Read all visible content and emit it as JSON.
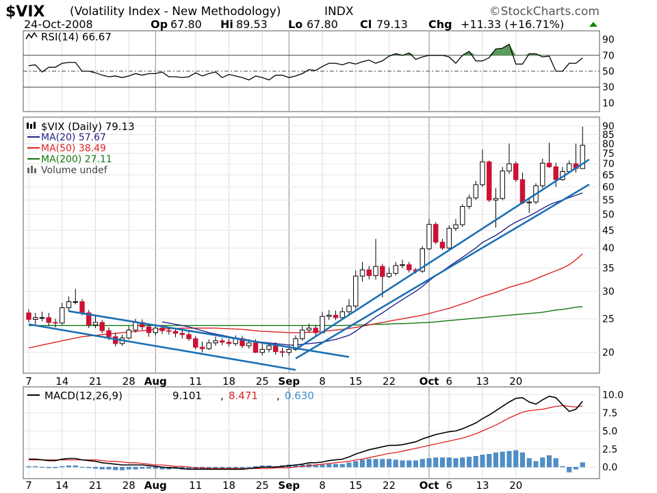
{
  "header": {
    "symbol": "$VIX",
    "description": "(Volatility Index - New Methodology)",
    "exchange": "INDX",
    "brand": "©StockCharts.com",
    "date": "24-Oct-2008",
    "quote": {
      "op_label": "Op",
      "op": "67.80",
      "hi_label": "Hi",
      "hi": "89.53",
      "lo_label": "Lo",
      "lo": "67.80",
      "cl_label": "Cl",
      "cl": "79.13",
      "chg_label": "Chg",
      "chg": "+11.33 (+16.71%)"
    }
  },
  "colors": {
    "up_candle": "#ffffff",
    "down_candle": "#cc1133",
    "ma20": "#222288",
    "ma50": "#dd2222",
    "ma200": "#117711",
    "trendline": "#1a6fb3",
    "macd": "#000000",
    "signal": "#dd2222",
    "histogram": "#4f8fc9",
    "rsi_fill": "#5a9a5a"
  },
  "chart_data": [
    {
      "type": "line",
      "panel": "rsi",
      "legend": "RSI(14) 66.67",
      "y_ticks": [
        90,
        70,
        50,
        30,
        10
      ],
      "ylim": [
        0,
        100
      ],
      "reference_lines": [
        70,
        50,
        30
      ],
      "x": [
        1,
        2,
        3,
        4,
        5,
        6,
        7,
        8,
        9,
        10,
        11,
        12,
        13,
        14,
        15,
        16,
        17,
        18,
        19,
        20,
        21,
        22,
        23,
        24,
        25,
        26,
        27,
        28,
        29,
        30,
        31,
        32,
        33,
        34,
        35,
        36,
        37,
        38,
        39,
        40,
        41,
        42,
        43,
        44,
        45,
        46,
        47,
        48,
        49,
        50,
        51,
        52,
        53,
        54,
        55,
        56,
        57,
        58,
        59,
        60,
        61,
        62,
        63,
        64,
        65,
        66,
        67,
        68,
        69,
        70,
        71,
        72,
        73,
        74,
        75,
        76,
        77,
        78,
        79,
        80,
        81,
        82,
        83,
        84
      ],
      "values": [
        57,
        58,
        49,
        55,
        55,
        60,
        61,
        61,
        50,
        50,
        48,
        45,
        43,
        44,
        42,
        44,
        47,
        45,
        47,
        47,
        49,
        43,
        43,
        42,
        43,
        48,
        44,
        47,
        49,
        42,
        46,
        44,
        42,
        39,
        44,
        42,
        39,
        45,
        45,
        42,
        44,
        47,
        52,
        51,
        56,
        60,
        60,
        58,
        61,
        59,
        62,
        64,
        60,
        63,
        69,
        72,
        70,
        73,
        65,
        68,
        70,
        70,
        70,
        68,
        60,
        70,
        75,
        63,
        63,
        67,
        78,
        79,
        84,
        59,
        59,
        72,
        72,
        68,
        69,
        50,
        50,
        60,
        60,
        66.67
      ]
    },
    {
      "type": "candlestick",
      "panel": "price",
      "title": "$VIX (Daily) 79.13",
      "legend": [
        {
          "name": "$VIX (Daily) 79.13"
        },
        {
          "name": "MA(20) 57.67"
        },
        {
          "name": "MA(50) 38.49"
        },
        {
          "name": "MA(200) 27.11"
        },
        {
          "name": "Volume undef"
        }
      ],
      "scale": "log",
      "y_ticks": [
        90,
        85,
        80,
        75,
        70,
        65,
        60,
        55,
        50,
        45,
        40,
        35,
        30,
        25,
        20
      ],
      "ylim": [
        17.5,
        95
      ],
      "x_ticks": [
        {
          "label": "7",
          "x": 1
        },
        {
          "label": "14",
          "x": 6
        },
        {
          "label": "21",
          "x": 11
        },
        {
          "label": "28",
          "x": 16
        },
        {
          "label": "Aug",
          "x": 20
        },
        {
          "label": "11",
          "x": 26
        },
        {
          "label": "18",
          "x": 31
        },
        {
          "label": "25",
          "x": 36
        },
        {
          "label": "Sep",
          "x": 40
        },
        {
          "label": "8",
          "x": 45
        },
        {
          "label": "15",
          "x": 50
        },
        {
          "label": "22",
          "x": 55
        },
        {
          "label": "Oct",
          "x": 61
        },
        {
          "label": "6",
          "x": 64
        },
        {
          "label": "13",
          "x": 69
        },
        {
          "label": "20",
          "x": 74
        }
      ],
      "candles": {
        "open": [
          26.0,
          24.9,
          25.2,
          25.2,
          24.4,
          24.3,
          26.9,
          28.0,
          28.0,
          26.0,
          24.0,
          24.4,
          23.1,
          22.2,
          21.2,
          22.0,
          23.2,
          24.4,
          23.7,
          22.8,
          23.5,
          23.1,
          23.0,
          22.7,
          22.5,
          21.9,
          20.7,
          20.5,
          21.3,
          21.6,
          21.4,
          21.2,
          21.9,
          20.9,
          21.3,
          20.0,
          20.4,
          20.9,
          20.1,
          20.0,
          20.4,
          21.9,
          23.2,
          23.5,
          22.8,
          25.4,
          25.6,
          25.2,
          26.2,
          27.2,
          33.2,
          34.6,
          33.3,
          35.4,
          33.1,
          33.8,
          35.6,
          35.8,
          34.6,
          34.3,
          39.8,
          46.8,
          41.6,
          40.0,
          45.6,
          46.7,
          52.7,
          55.8,
          60.9,
          70.9,
          55.0,
          55.6,
          66.7,
          70.0,
          63.0,
          54.0,
          54.3,
          60.5,
          70.3,
          68.6,
          63.0,
          66.5,
          70.0,
          67.8
        ],
        "close": [
          24.9,
          25.2,
          25.2,
          24.4,
          24.3,
          26.9,
          28.0,
          28.0,
          26.0,
          24.0,
          24.4,
          23.1,
          22.2,
          21.2,
          22.0,
          23.2,
          24.4,
          23.7,
          22.8,
          23.5,
          23.1,
          23.0,
          22.7,
          22.5,
          21.9,
          20.7,
          20.5,
          21.3,
          21.6,
          21.4,
          21.2,
          21.9,
          20.9,
          21.3,
          20.0,
          20.4,
          20.9,
          20.1,
          20.0,
          20.4,
          21.9,
          23.2,
          23.5,
          22.8,
          25.4,
          25.6,
          25.2,
          26.2,
          27.2,
          33.2,
          34.6,
          33.3,
          35.4,
          33.1,
          33.8,
          35.6,
          35.8,
          34.6,
          34.3,
          39.8,
          46.8,
          41.6,
          40.0,
          45.6,
          46.7,
          52.7,
          55.8,
          60.9,
          70.9,
          55.0,
          55.6,
          66.7,
          70.0,
          63.0,
          54.0,
          54.3,
          60.5,
          70.3,
          68.6,
          63.0,
          66.5,
          70.0,
          67.8,
          79.13
        ],
        "high": [
          26.6,
          26.0,
          26.2,
          26.0,
          25.0,
          27.8,
          29.0,
          30.5,
          28.5,
          26.5,
          25.5,
          24.8,
          23.6,
          22.8,
          22.5,
          23.8,
          25.0,
          24.9,
          24.2,
          24.0,
          24.0,
          23.6,
          23.5,
          23.2,
          23.0,
          22.3,
          21.5,
          21.8,
          22.2,
          22.0,
          21.9,
          22.4,
          22.3,
          21.8,
          21.8,
          21.2,
          21.3,
          21.4,
          20.6,
          20.9,
          22.4,
          23.8,
          24.2,
          24.0,
          26.2,
          26.5,
          26.4,
          27.0,
          28.5,
          34.5,
          36.5,
          35.5,
          42.5,
          36.0,
          35.2,
          36.5,
          37.0,
          36.5,
          35.0,
          40.5,
          48.5,
          47.5,
          42.5,
          46.5,
          48.5,
          53.5,
          57.0,
          62.5,
          77.0,
          71.5,
          59.5,
          68.5,
          80.0,
          71.0,
          66.0,
          56.0,
          61.5,
          72.5,
          80.5,
          70.5,
          68.5,
          71.5,
          80.0,
          89.53
        ],
        "low": [
          24.4,
          23.8,
          24.6,
          23.8,
          23.6,
          24.0,
          26.2,
          27.5,
          25.6,
          23.5,
          23.5,
          22.7,
          21.7,
          20.8,
          20.9,
          21.8,
          22.8,
          23.2,
          22.2,
          22.4,
          22.6,
          22.5,
          22.1,
          21.9,
          21.6,
          20.4,
          20.0,
          20.3,
          20.9,
          21.0,
          20.8,
          20.9,
          20.6,
          20.5,
          19.9,
          19.6,
          20.0,
          19.7,
          19.4,
          19.6,
          20.2,
          21.6,
          22.8,
          22.2,
          22.7,
          24.8,
          24.8,
          24.9,
          25.8,
          26.7,
          32.0,
          32.5,
          32.4,
          28.8,
          32.8,
          33.3,
          35.0,
          34.0,
          33.8,
          33.9,
          39.5,
          41.0,
          39.5,
          39.6,
          44.8,
          46.0,
          51.8,
          55.0,
          60.0,
          54.3,
          45.8,
          54.9,
          65.5,
          62.0,
          53.5,
          50.5,
          53.5,
          59.5,
          68.0,
          60.0,
          62.5,
          65.8,
          66.0,
          67.8
        ]
      },
      "ma20": [
        null,
        null,
        null,
        null,
        null,
        null,
        null,
        null,
        null,
        null,
        null,
        null,
        null,
        null,
        null,
        null,
        null,
        null,
        null,
        null,
        24.5,
        24.3,
        24.1,
        23.9,
        23.7,
        23.4,
        23.1,
        22.8,
        22.6,
        22.4,
        22.2,
        22.0,
        21.9,
        21.7,
        21.5,
        21.4,
        21.3,
        21.2,
        21.1,
        21.0,
        21.0,
        21.1,
        21.2,
        21.3,
        21.4,
        21.6,
        21.8,
        22.1,
        22.4,
        23.0,
        23.8,
        24.5,
        25.3,
        26.0,
        26.8,
        27.6,
        28.4,
        29.2,
        30.0,
        31.0,
        32.2,
        33.3,
        34.3,
        35.4,
        36.5,
        37.6,
        38.8,
        40.0,
        41.5,
        42.5,
        43.5,
        44.8,
        46.3,
        47.5,
        48.5,
        49.5,
        50.7,
        52.0,
        53.3,
        54.2,
        55.0,
        55.9,
        56.8,
        57.67
      ],
      "ma50": [
        20.6,
        20.8,
        21.0,
        21.2,
        21.4,
        21.6,
        21.8,
        22.0,
        22.2,
        22.3,
        22.4,
        22.5,
        22.6,
        22.7,
        22.8,
        22.9,
        23.0,
        23.1,
        23.2,
        23.3,
        23.35,
        23.4,
        23.45,
        23.5,
        23.5,
        23.5,
        23.5,
        23.5,
        23.5,
        23.45,
        23.4,
        23.35,
        23.3,
        23.2,
        23.1,
        23.0,
        22.95,
        22.9,
        22.85,
        22.8,
        22.8,
        22.8,
        22.85,
        22.9,
        23.0,
        23.1,
        23.2,
        23.3,
        23.45,
        23.6,
        23.8,
        24.0,
        24.2,
        24.4,
        24.6,
        24.8,
        25.0,
        25.2,
        25.4,
        25.6,
        25.9,
        26.2,
        26.5,
        26.8,
        27.2,
        27.6,
        28.0,
        28.5,
        29.0,
        29.4,
        29.8,
        30.3,
        30.8,
        31.2,
        31.6,
        32.0,
        32.6,
        33.2,
        33.8,
        34.4,
        35.0,
        35.8,
        37.0,
        38.49
      ],
      "ma200": [
        23.9,
        23.9,
        23.9,
        23.9,
        23.9,
        23.9,
        23.9,
        23.9,
        23.9,
        23.9,
        23.9,
        23.9,
        23.9,
        23.9,
        23.9,
        23.9,
        23.9,
        23.9,
        23.9,
        23.9,
        23.9,
        23.9,
        23.9,
        23.9,
        23.9,
        23.9,
        23.9,
        23.9,
        23.9,
        23.9,
        23.9,
        23.9,
        23.9,
        23.9,
        23.9,
        23.9,
        23.9,
        23.9,
        23.9,
        23.9,
        23.9,
        23.9,
        23.9,
        23.9,
        23.9,
        23.9,
        23.9,
        23.9,
        23.95,
        24.0,
        24.0,
        24.05,
        24.1,
        24.1,
        24.15,
        24.2,
        24.2,
        24.25,
        24.3,
        24.35,
        24.4,
        24.5,
        24.6,
        24.7,
        24.8,
        24.9,
        25.0,
        25.1,
        25.2,
        25.3,
        25.4,
        25.5,
        25.6,
        25.7,
        25.8,
        25.9,
        26.0,
        26.1,
        26.3,
        26.5,
        26.6,
        26.8,
        27.0,
        27.11
      ]
    },
    {
      "type": "line",
      "panel": "macd",
      "legend": [
        "MACD(12,26,9)",
        "9.101",
        ",",
        "8.471",
        ",",
        "0.630"
      ],
      "y_ticks": [
        "10.0",
        "7.5",
        "5.0",
        "2.5",
        "0.0"
      ],
      "ylim": [
        -1.5,
        11
      ],
      "x_ticks": [
        {
          "label": "7",
          "x": 1
        },
        {
          "label": "14",
          "x": 6
        },
        {
          "label": "21",
          "x": 11
        },
        {
          "label": "28",
          "x": 16
        },
        {
          "label": "Aug",
          "x": 20
        },
        {
          "label": "11",
          "x": 26
        },
        {
          "label": "18",
          "x": 31
        },
        {
          "label": "25",
          "x": 36
        },
        {
          "label": "Sep",
          "x": 40
        },
        {
          "label": "8",
          "x": 45
        },
        {
          "label": "15",
          "x": 50
        },
        {
          "label": "22",
          "x": 55
        },
        {
          "label": "Oct",
          "x": 61
        },
        {
          "label": "6",
          "x": 64
        },
        {
          "label": "13",
          "x": 69
        },
        {
          "label": "20",
          "x": 74
        }
      ],
      "macd": [
        1.1,
        1.1,
        1.0,
        0.9,
        0.9,
        1.1,
        1.2,
        1.2,
        1.0,
        0.9,
        0.8,
        0.6,
        0.5,
        0.4,
        0.3,
        0.3,
        0.3,
        0.3,
        0.2,
        0.1,
        0.0,
        -0.1,
        -0.1,
        -0.2,
        -0.3,
        -0.3,
        -0.3,
        -0.3,
        -0.3,
        -0.3,
        -0.3,
        -0.3,
        -0.3,
        -0.2,
        -0.1,
        0.0,
        0.0,
        0.0,
        0.1,
        0.2,
        0.3,
        0.4,
        0.6,
        0.6,
        0.7,
        0.9,
        1.0,
        1.1,
        1.4,
        1.8,
        2.1,
        2.4,
        2.6,
        2.8,
        3.0,
        3.0,
        3.1,
        3.3,
        3.5,
        3.9,
        4.2,
        4.5,
        4.7,
        4.9,
        5.0,
        5.3,
        5.7,
        6.1,
        6.7,
        7.2,
        7.8,
        8.4,
        9.0,
        9.5,
        9.6,
        9.0,
        8.7,
        9.3,
        9.8,
        9.6,
        8.6,
        7.7,
        8.0,
        9.101
      ],
      "signal": [
        1.0,
        1.0,
        1.0,
        1.0,
        1.0,
        1.0,
        1.0,
        1.0,
        1.0,
        1.0,
        1.0,
        0.9,
        0.8,
        0.8,
        0.7,
        0.6,
        0.6,
        0.5,
        0.4,
        0.3,
        0.3,
        0.2,
        0.1,
        0.1,
        0.0,
        -0.1,
        -0.1,
        -0.2,
        -0.2,
        -0.2,
        -0.2,
        -0.2,
        -0.2,
        -0.2,
        -0.2,
        -0.2,
        -0.2,
        -0.1,
        -0.1,
        -0.1,
        0.0,
        0.1,
        0.2,
        0.3,
        0.4,
        0.5,
        0.6,
        0.7,
        0.8,
        1.0,
        1.1,
        1.3,
        1.5,
        1.7,
        1.9,
        2.0,
        2.2,
        2.4,
        2.6,
        2.8,
        3.0,
        3.2,
        3.4,
        3.6,
        3.8,
        4.0,
        4.3,
        4.6,
        5.0,
        5.4,
        5.8,
        6.3,
        6.8,
        7.2,
        7.6,
        7.8,
        7.9,
        8.0,
        8.2,
        8.4,
        8.5,
        8.4,
        8.3,
        8.471
      ],
      "histogram": [
        0.1,
        0.1,
        0.0,
        -0.1,
        -0.1,
        0.1,
        0.2,
        0.2,
        0.0,
        -0.1,
        -0.2,
        -0.3,
        -0.3,
        -0.4,
        -0.4,
        -0.3,
        -0.3,
        -0.2,
        -0.2,
        -0.2,
        -0.3,
        -0.3,
        -0.2,
        -0.3,
        -0.3,
        -0.2,
        -0.2,
        -0.1,
        -0.1,
        -0.1,
        -0.1,
        -0.1,
        -0.1,
        0.0,
        0.1,
        0.2,
        0.2,
        0.1,
        0.2,
        0.3,
        0.3,
        0.3,
        0.4,
        0.3,
        0.3,
        0.4,
        0.4,
        0.4,
        0.6,
        0.8,
        1.0,
        1.1,
        1.1,
        1.1,
        1.1,
        1.0,
        0.9,
        0.9,
        0.9,
        1.1,
        1.2,
        1.3,
        1.3,
        1.3,
        1.2,
        1.3,
        1.4,
        1.5,
        1.7,
        1.8,
        2.0,
        2.1,
        2.2,
        2.3,
        2.0,
        1.2,
        0.8,
        1.3,
        1.6,
        1.2,
        0.1,
        -0.7,
        -0.3,
        0.63
      ]
    }
  ],
  "trendlines": [
    {
      "name": "downtrend-upper-line",
      "from": [
        6,
        26.3
      ],
      "to": [
        48,
        19.4
      ]
    },
    {
      "name": "downtrend-lower-line",
      "from": [
        0,
        24.1
      ],
      "to": [
        40,
        17.8
      ]
    },
    {
      "name": "uptrend-upper-line",
      "from": [
        40,
        20.4
      ],
      "to": [
        84,
        72
      ]
    },
    {
      "name": "uptrend-lower-line",
      "from": [
        40,
        19.2
      ],
      "to": [
        84,
        61
      ]
    }
  ]
}
